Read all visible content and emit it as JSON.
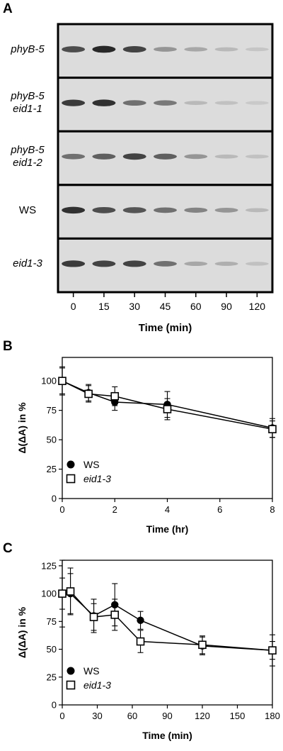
{
  "panels": {
    "a_letter": "A",
    "b_letter": "B",
    "c_letter": "C"
  },
  "blot": {
    "rows": [
      {
        "line1": "phyB-5",
        "line2": "",
        "italic": true,
        "intensity": [
          0.75,
          0.95,
          0.8,
          0.35,
          0.25,
          0.15,
          0.08
        ]
      },
      {
        "line1": "phyB-5",
        "line2": "eid1-1",
        "italic": true,
        "intensity": [
          0.85,
          0.9,
          0.55,
          0.5,
          0.15,
          0.1,
          0.06
        ]
      },
      {
        "line1": "phyB-5",
        "line2": "eid1-2",
        "italic": true,
        "intensity": [
          0.55,
          0.65,
          0.8,
          0.65,
          0.35,
          0.15,
          0.1
        ]
      },
      {
        "line1": "WS",
        "line2": "",
        "italic": false,
        "intensity": [
          0.9,
          0.75,
          0.7,
          0.55,
          0.45,
          0.35,
          0.15
        ]
      },
      {
        "line1": "eid1-3",
        "line2": "",
        "italic": true,
        "intensity": [
          0.85,
          0.8,
          0.8,
          0.55,
          0.25,
          0.2,
          0.1
        ]
      }
    ],
    "time_ticks": [
      "0",
      "15",
      "30",
      "45",
      "60",
      "90",
      "120"
    ],
    "xlabel": "Time (min)"
  },
  "chart_data": [
    {
      "type": "line",
      "panel": "B",
      "xlabel": "Time (hr)",
      "ylabel": "Δ(ΔA) in %",
      "xlim": [
        0,
        8
      ],
      "ylim": [
        0,
        120
      ],
      "xticks": [
        0,
        2,
        4,
        6,
        8
      ],
      "yticks": [
        0,
        25,
        50,
        75,
        100
      ],
      "legend_placement": "bottom-left",
      "series": [
        {
          "name": "WS",
          "marker": "filled-circle",
          "x": [
            0,
            1,
            2,
            4,
            8
          ],
          "y": [
            100,
            90,
            82,
            80,
            60
          ],
          "err": [
            12,
            7,
            7,
            11,
            8
          ]
        },
        {
          "name": "eid1-3",
          "marker": "open-square",
          "x": [
            0,
            1,
            2,
            4,
            8
          ],
          "y": [
            100,
            89,
            87,
            76,
            59
          ],
          "err": [
            11,
            7,
            8,
            9,
            7
          ]
        }
      ]
    },
    {
      "type": "line",
      "panel": "C",
      "xlabel": "Time (min)",
      "ylabel": "Δ(ΔA) in %",
      "xlim": [
        0,
        180
      ],
      "ylim": [
        0,
        130
      ],
      "xticks": [
        0,
        30,
        60,
        90,
        120,
        150,
        180
      ],
      "yticks": [
        0,
        25,
        50,
        75,
        100,
        125
      ],
      "legend_placement": "bottom-left",
      "series": [
        {
          "name": "WS",
          "marker": "filled-circle",
          "x": [
            0,
            7,
            27,
            45,
            67,
            120,
            180
          ],
          "y": [
            100,
            100,
            80,
            90,
            76,
            53,
            49
          ],
          "err": [
            30,
            18,
            15,
            19,
            8,
            8,
            14
          ]
        },
        {
          "name": "eid1-3",
          "marker": "open-square",
          "x": [
            0,
            7,
            27,
            45,
            67,
            120,
            180
          ],
          "y": [
            100,
            102,
            79,
            81,
            57,
            54,
            49
          ],
          "err": [
            14,
            21,
            12,
            14,
            10,
            8,
            8
          ]
        }
      ]
    }
  ]
}
